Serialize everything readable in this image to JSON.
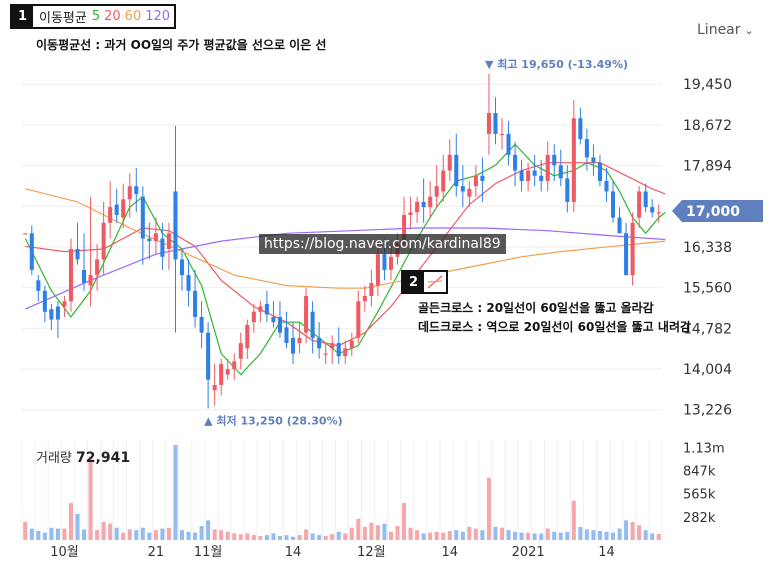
{
  "legend": {
    "badge": "1",
    "title": "이동평균",
    "periods": [
      {
        "label": "5",
        "color": "#2eb82e"
      },
      {
        "label": "20",
        "color": "#f05a64"
      },
      {
        "label": "60",
        "color": "#f0a050"
      },
      {
        "label": "120",
        "color": "#9966ff"
      }
    ]
  },
  "scale_toggle": {
    "label": "Linear",
    "icon": "chevron-down-icon"
  },
  "caption_ma": "이동평균선 : 과거 OO일의 주가 평균값을 선으로 이은 선",
  "watermark": "https://blog.naver.com/kardinal89",
  "marker2": {
    "badge": "2"
  },
  "annotations": [
    "골든크로스 : 20일선이 60일선을 뚫고 올라감",
    "데드크로스 : 역으로 20일선이 60일선을 뚫고 내려감"
  ],
  "colors": {
    "up": "#ee5a63",
    "down": "#2e7fe6",
    "badge": "#5f7fbf"
  },
  "chart_data": {
    "type": "candlestick",
    "y_ticks": [
      "19,450",
      "18,672",
      "17,894",
      "17,116",
      "16,338",
      "15,560",
      "14,782",
      "14,004",
      "13,226"
    ],
    "ylim": [
      12800,
      20200
    ],
    "x_tick_labels": [
      "10월",
      "21",
      "11월",
      "14",
      "12월",
      "14",
      "2021",
      "14"
    ],
    "current_price": "17,000",
    "high_label": "▼ 최고  19,650 (-13.49%)",
    "low_label": "▲ 최저  13,250 (28.30%)",
    "candles": [
      {
        "o": 16600,
        "h": 16600,
        "l": 16600,
        "c": 16600
      },
      {
        "o": 16600,
        "h": 16750,
        "l": 15800,
        "c": 15900
      },
      {
        "o": 15700,
        "h": 15800,
        "l": 15300,
        "c": 15500
      },
      {
        "o": 15500,
        "h": 15600,
        "l": 14900,
        "c": 15100
      },
      {
        "o": 15150,
        "h": 15250,
        "l": 14750,
        "c": 14950
      },
      {
        "o": 15200,
        "h": 15300,
        "l": 14600,
        "c": 14950
      },
      {
        "o": 15200,
        "h": 15400,
        "l": 15000,
        "c": 15300
      },
      {
        "o": 15300,
        "h": 16500,
        "l": 15100,
        "c": 16300
      },
      {
        "o": 16300,
        "h": 16800,
        "l": 16000,
        "c": 16100
      },
      {
        "o": 15900,
        "h": 16600,
        "l": 15500,
        "c": 15650
      },
      {
        "o": 15600,
        "h": 17300,
        "l": 15200,
        "c": 15800
      },
      {
        "o": 15800,
        "h": 16400,
        "l": 15500,
        "c": 16100
      },
      {
        "o": 16100,
        "h": 17200,
        "l": 15800,
        "c": 16800
      },
      {
        "o": 16800,
        "h": 17600,
        "l": 16500,
        "c": 17100
      },
      {
        "o": 17150,
        "h": 17450,
        "l": 16800,
        "c": 16950
      },
      {
        "o": 16900,
        "h": 17550,
        "l": 16700,
        "c": 17250
      },
      {
        "o": 17250,
        "h": 17750,
        "l": 16900,
        "c": 17500
      },
      {
        "o": 17500,
        "h": 17850,
        "l": 17000,
        "c": 17350
      },
      {
        "o": 17300,
        "h": 17500,
        "l": 16000,
        "c": 16500
      },
      {
        "o": 16500,
        "h": 16800,
        "l": 16100,
        "c": 16450
      },
      {
        "o": 16450,
        "h": 16900,
        "l": 16200,
        "c": 16600
      },
      {
        "o": 16500,
        "h": 16800,
        "l": 15900,
        "c": 16150
      },
      {
        "o": 16300,
        "h": 16800,
        "l": 15900,
        "c": 16600
      },
      {
        "o": 17400,
        "h": 18650,
        "l": 14700,
        "c": 16100
      },
      {
        "o": 16100,
        "h": 16300,
        "l": 15500,
        "c": 15800
      },
      {
        "o": 15800,
        "h": 16100,
        "l": 15200,
        "c": 15500
      },
      {
        "o": 15500,
        "h": 15900,
        "l": 14800,
        "c": 15000
      },
      {
        "o": 15000,
        "h": 15300,
        "l": 14400,
        "c": 14700
      },
      {
        "o": 14700,
        "h": 14900,
        "l": 13250,
        "c": 13800
      },
      {
        "o": 13600,
        "h": 14100,
        "l": 13300,
        "c": 13700
      },
      {
        "o": 13700,
        "h": 14200,
        "l": 13500,
        "c": 14100
      },
      {
        "o": 13900,
        "h": 14200,
        "l": 13800,
        "c": 14000
      },
      {
        "o": 14000,
        "h": 14300,
        "l": 13800,
        "c": 14150
      },
      {
        "o": 14200,
        "h": 14700,
        "l": 14000,
        "c": 14500
      },
      {
        "o": 14400,
        "h": 14950,
        "l": 14200,
        "c": 14850
      },
      {
        "o": 14900,
        "h": 15250,
        "l": 14700,
        "c": 15100
      },
      {
        "o": 15100,
        "h": 15300,
        "l": 14900,
        "c": 15200
      },
      {
        "o": 15250,
        "h": 15500,
        "l": 14900,
        "c": 15050
      },
      {
        "o": 15000,
        "h": 15300,
        "l": 14800,
        "c": 14900
      },
      {
        "o": 15000,
        "h": 15300,
        "l": 14600,
        "c": 14700
      },
      {
        "o": 14800,
        "h": 15100,
        "l": 14400,
        "c": 14500
      },
      {
        "o": 14600,
        "h": 14900,
        "l": 14100,
        "c": 14300
      },
      {
        "o": 14500,
        "h": 14900,
        "l": 14300,
        "c": 14600
      },
      {
        "o": 14700,
        "h": 15550,
        "l": 14500,
        "c": 15400
      },
      {
        "o": 15100,
        "h": 15300,
        "l": 14300,
        "c": 14600
      },
      {
        "o": 14600,
        "h": 14900,
        "l": 14200,
        "c": 14400
      },
      {
        "o": 14300,
        "h": 14500,
        "l": 14100,
        "c": 14300
      },
      {
        "o": 14400,
        "h": 14650,
        "l": 14100,
        "c": 14500
      },
      {
        "o": 14500,
        "h": 14800,
        "l": 14100,
        "c": 14250
      },
      {
        "o": 14250,
        "h": 14550,
        "l": 14100,
        "c": 14400
      },
      {
        "o": 14400,
        "h": 14700,
        "l": 14250,
        "c": 14550
      },
      {
        "o": 14600,
        "h": 15500,
        "l": 14500,
        "c": 15300
      },
      {
        "o": 15300,
        "h": 15600,
        "l": 15100,
        "c": 15400
      },
      {
        "o": 15400,
        "h": 15900,
        "l": 15200,
        "c": 15650
      },
      {
        "o": 15600,
        "h": 16400,
        "l": 15400,
        "c": 16200
      },
      {
        "o": 16200,
        "h": 16500,
        "l": 15700,
        "c": 15900
      },
      {
        "o": 15900,
        "h": 16350,
        "l": 15700,
        "c": 16150
      },
      {
        "o": 16150,
        "h": 16600,
        "l": 16000,
        "c": 16400
      },
      {
        "o": 16400,
        "h": 17300,
        "l": 16300,
        "c": 16950
      },
      {
        "o": 16950,
        "h": 17300,
        "l": 16700,
        "c": 17000
      },
      {
        "o": 17000,
        "h": 17300,
        "l": 16800,
        "c": 17200
      },
      {
        "o": 17200,
        "h": 17650,
        "l": 16800,
        "c": 17100
      },
      {
        "o": 17100,
        "h": 17600,
        "l": 16900,
        "c": 17300
      },
      {
        "o": 17300,
        "h": 17900,
        "l": 17100,
        "c": 17500
      },
      {
        "o": 17400,
        "h": 18100,
        "l": 17200,
        "c": 17800
      },
      {
        "o": 17800,
        "h": 18400,
        "l": 17600,
        "c": 18100
      },
      {
        "o": 18100,
        "h": 18500,
        "l": 17300,
        "c": 17500
      },
      {
        "o": 17500,
        "h": 17900,
        "l": 17100,
        "c": 17400
      },
      {
        "o": 17300,
        "h": 17600,
        "l": 17100,
        "c": 17450
      },
      {
        "o": 17500,
        "h": 17900,
        "l": 17300,
        "c": 17700
      },
      {
        "o": 17700,
        "h": 18050,
        "l": 17200,
        "c": 17600
      },
      {
        "o": 18500,
        "h": 19650,
        "l": 18100,
        "c": 18900
      },
      {
        "o": 18900,
        "h": 19200,
        "l": 18300,
        "c": 18500
      },
      {
        "o": 18500,
        "h": 18800,
        "l": 18200,
        "c": 18500
      },
      {
        "o": 18500,
        "h": 18750,
        "l": 17900,
        "c": 18100
      },
      {
        "o": 18100,
        "h": 18350,
        "l": 17500,
        "c": 17800
      },
      {
        "o": 17800,
        "h": 18000,
        "l": 17400,
        "c": 17600
      },
      {
        "o": 17600,
        "h": 17950,
        "l": 17400,
        "c": 17800
      },
      {
        "o": 17800,
        "h": 18100,
        "l": 17500,
        "c": 17700
      },
      {
        "o": 17700,
        "h": 18000,
        "l": 17400,
        "c": 17600
      },
      {
        "o": 17600,
        "h": 18350,
        "l": 17400,
        "c": 18100
      },
      {
        "o": 18100,
        "h": 18300,
        "l": 17600,
        "c": 17900
      },
      {
        "o": 17900,
        "h": 18200,
        "l": 17500,
        "c": 17650
      },
      {
        "o": 17650,
        "h": 17900,
        "l": 17000,
        "c": 17200
      },
      {
        "o": 17200,
        "h": 19150,
        "l": 17000,
        "c": 18800
      },
      {
        "o": 18800,
        "h": 19000,
        "l": 18300,
        "c": 18400
      },
      {
        "o": 18400,
        "h": 18600,
        "l": 17800,
        "c": 18050
      },
      {
        "o": 18050,
        "h": 18300,
        "l": 17700,
        "c": 17950
      },
      {
        "o": 17950,
        "h": 18100,
        "l": 17500,
        "c": 17600
      },
      {
        "o": 17600,
        "h": 17850,
        "l": 17200,
        "c": 17400
      },
      {
        "o": 17400,
        "h": 17600,
        "l": 16800,
        "c": 16900
      },
      {
        "o": 16900,
        "h": 17100,
        "l": 16600,
        "c": 16600
      },
      {
        "o": 16600,
        "h": 16800,
        "l": 15800,
        "c": 15800
      },
      {
        "o": 15800,
        "h": 17000,
        "l": 15600,
        "c": 16800
      },
      {
        "o": 16900,
        "h": 17500,
        "l": 16700,
        "c": 17400
      },
      {
        "o": 17400,
        "h": 17550,
        "l": 17000,
        "c": 17100
      },
      {
        "o": 17100,
        "h": 17250,
        "l": 16900,
        "c": 17000
      },
      {
        "o": 17000,
        "h": 17150,
        "l": 16800,
        "c": 17000
      }
    ],
    "ma_series": [
      {
        "name": "5",
        "color": "#2eb82e",
        "points": [
          [
            0,
            16500
          ],
          [
            4,
            15500
          ],
          [
            7,
            15000
          ],
          [
            10,
            15500
          ],
          [
            13,
            16300
          ],
          [
            16,
            17100
          ],
          [
            18,
            17300
          ],
          [
            21,
            16600
          ],
          [
            24,
            16300
          ],
          [
            27,
            15600
          ],
          [
            30,
            14300
          ],
          [
            33,
            13900
          ],
          [
            36,
            14300
          ],
          [
            39,
            14900
          ],
          [
            42,
            14900
          ],
          [
            45,
            14600
          ],
          [
            48,
            14300
          ],
          [
            51,
            14450
          ],
          [
            54,
            15100
          ],
          [
            57,
            15800
          ],
          [
            60,
            16500
          ],
          [
            63,
            17100
          ],
          [
            66,
            17600
          ],
          [
            69,
            17700
          ],
          [
            72,
            17900
          ],
          [
            75,
            18300
          ],
          [
            78,
            17900
          ],
          [
            81,
            17700
          ],
          [
            84,
            17800
          ],
          [
            86,
            17950
          ],
          [
            89,
            17800
          ],
          [
            91,
            17400
          ],
          [
            93,
            16900
          ],
          [
            95,
            16600
          ],
          [
            97,
            16900
          ],
          [
            98,
            17000
          ]
        ]
      },
      {
        "name": "20",
        "color": "#f05a64",
        "points": [
          [
            0,
            16350
          ],
          [
            6,
            16250
          ],
          [
            12,
            16300
          ],
          [
            18,
            16700
          ],
          [
            22,
            16650
          ],
          [
            26,
            16350
          ],
          [
            30,
            15700
          ],
          [
            35,
            15200
          ],
          [
            40,
            14900
          ],
          [
            44,
            14550
          ],
          [
            48,
            14450
          ],
          [
            52,
            14700
          ],
          [
            56,
            15200
          ],
          [
            60,
            15850
          ],
          [
            64,
            16500
          ],
          [
            68,
            17150
          ],
          [
            72,
            17550
          ],
          [
            76,
            17800
          ],
          [
            80,
            17950
          ],
          [
            84,
            17950
          ],
          [
            88,
            17950
          ],
          [
            92,
            17700
          ],
          [
            96,
            17450
          ],
          [
            98,
            17350
          ]
        ]
      },
      {
        "name": "60",
        "color": "#f0a050",
        "points": [
          [
            0,
            17450
          ],
          [
            8,
            17200
          ],
          [
            16,
            16700
          ],
          [
            24,
            16250
          ],
          [
            32,
            15800
          ],
          [
            40,
            15600
          ],
          [
            48,
            15550
          ],
          [
            52,
            15550
          ],
          [
            58,
            15700
          ],
          [
            64,
            15850
          ],
          [
            70,
            16000
          ],
          [
            76,
            16150
          ],
          [
            82,
            16250
          ],
          [
            90,
            16350
          ],
          [
            98,
            16450
          ]
        ]
      },
      {
        "name": "120",
        "color": "#9966ff",
        "points": [
          [
            0,
            15150
          ],
          [
            10,
            15700
          ],
          [
            20,
            16200
          ],
          [
            30,
            16450
          ],
          [
            40,
            16600
          ],
          [
            50,
            16650
          ],
          [
            60,
            16700
          ],
          [
            70,
            16700
          ],
          [
            80,
            16650
          ],
          [
            90,
            16550
          ],
          [
            98,
            16480
          ]
        ]
      }
    ],
    "volume": {
      "label": "거래량",
      "current": "72,941",
      "y_ticks": [
        "1.13m",
        "847k",
        "565k",
        "282k"
      ],
      "max": 1220000,
      "values": [
        220000,
        140000,
        110000,
        90000,
        150000,
        140000,
        140000,
        450000,
        320000,
        130000,
        1020000,
        120000,
        220000,
        200000,
        150000,
        90000,
        130000,
        120000,
        150000,
        90000,
        120000,
        140000,
        150000,
        1160000,
        120000,
        100000,
        90000,
        170000,
        240000,
        130000,
        120000,
        100000,
        80000,
        70000,
        80000,
        60000,
        50000,
        60000,
        80000,
        50000,
        60000,
        40000,
        60000,
        130000,
        80000,
        60000,
        50000,
        70000,
        100000,
        80000,
        150000,
        260000,
        160000,
        210000,
        180000,
        200000,
        100000,
        170000,
        450000,
        150000,
        120000,
        80000,
        90000,
        100000,
        90000,
        110000,
        120000,
        100000,
        160000,
        140000,
        120000,
        760000,
        160000,
        150000,
        120000,
        100000,
        90000,
        90000,
        80000,
        80000,
        140000,
        100000,
        90000,
        100000,
        480000,
        160000,
        130000,
        120000,
        110000,
        100000,
        90000,
        140000,
        240000,
        220000,
        180000,
        120000,
        80000,
        73000
      ]
    }
  }
}
